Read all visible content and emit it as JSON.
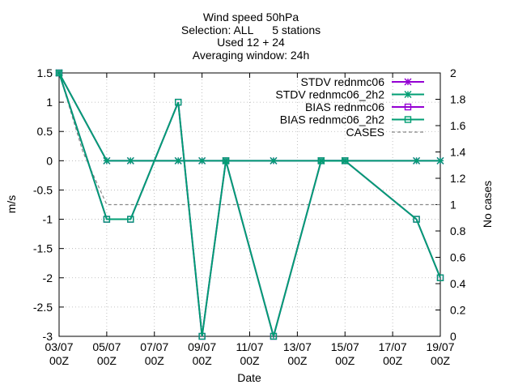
{
  "chart_data": {
    "type": "line",
    "title_lines": [
      "Wind speed 50hPa",
      "Selection: ALL      5 stations",
      "Used 12 + 24",
      "Averaging window: 24h"
    ],
    "xlabel": "Date",
    "ylabel": "m/s",
    "y2label": "No cases",
    "xlim": [
      0,
      16
    ],
    "ylim": [
      -3,
      1.5
    ],
    "y2lim": [
      0,
      2
    ],
    "x_ticks": [
      {
        "x": 0,
        "line1": "03/07",
        "line2": "00Z"
      },
      {
        "x": 2,
        "line1": "05/07",
        "line2": "00Z"
      },
      {
        "x": 4,
        "line1": "07/07",
        "line2": "00Z"
      },
      {
        "x": 6,
        "line1": "09/07",
        "line2": "00Z"
      },
      {
        "x": 8,
        "line1": "11/07",
        "line2": "00Z"
      },
      {
        "x": 10,
        "line1": "13/07",
        "line2": "00Z"
      },
      {
        "x": 12,
        "line1": "15/07",
        "line2": "00Z"
      },
      {
        "x": 14,
        "line1": "17/07",
        "line2": "00Z"
      },
      {
        "x": 16,
        "line1": "19/07",
        "line2": "00Z"
      }
    ],
    "y_ticks": [
      "1.5",
      "1",
      "0.5",
      "0",
      "-0.5",
      "-1",
      "-1.5",
      "-2",
      "-2.5",
      "-3"
    ],
    "y2_ticks": [
      "2",
      "1.8",
      "1.6",
      "1.4",
      "1.2",
      "1",
      "0.8",
      "0.6",
      "0.4",
      "0.2",
      "0"
    ],
    "legend_position": "top-right",
    "series": [
      {
        "name": "STDV rednmc06",
        "color": "#9400d3",
        "marker": "star",
        "axis": "y",
        "x": [
          0,
          2,
          3,
          5,
          6,
          7,
          9,
          11,
          12,
          15,
          16
        ],
        "values": [
          1.5,
          0,
          0,
          0,
          0,
          0,
          0,
          0,
          0,
          0,
          0
        ]
      },
      {
        "name": "STDV rednmc06_2h2",
        "color": "#009e73",
        "marker": "star",
        "axis": "y",
        "x": [
          0,
          2,
          3,
          5,
          6,
          7,
          9,
          11,
          12,
          15,
          16
        ],
        "values": [
          1.5,
          0,
          0,
          0,
          0,
          0,
          0,
          0,
          0,
          0,
          0
        ]
      },
      {
        "name": "BIAS rednmc06",
        "color": "#9400d3",
        "marker": "square",
        "axis": "y",
        "x": [
          0,
          2,
          3,
          5,
          6,
          7,
          9,
          11,
          12,
          15,
          16
        ],
        "values": [
          1.5,
          -1,
          -1,
          1,
          -3,
          0,
          -3,
          0,
          0,
          -1,
          -2
        ]
      },
      {
        "name": "BIAS rednmc06_2h2",
        "color": "#009e73",
        "marker": "square",
        "axis": "y",
        "x": [
          0,
          2,
          3,
          5,
          6,
          7,
          9,
          11,
          12,
          15,
          16
        ],
        "values": [
          1.5,
          -1,
          -1,
          1,
          -3,
          0,
          -3,
          0,
          0,
          -1,
          -2
        ]
      },
      {
        "name": "CASES",
        "color": "#888888",
        "marker": "none",
        "dashed": true,
        "axis": "y2",
        "x": [
          0,
          1,
          2,
          3,
          4,
          5,
          6,
          7,
          8,
          9,
          10,
          11,
          12,
          13,
          14,
          15,
          16
        ],
        "values": [
          2,
          1.4,
          1,
          1,
          1,
          1,
          1,
          1,
          1,
          1,
          1,
          1,
          1,
          1,
          1,
          1,
          1
        ]
      }
    ]
  }
}
